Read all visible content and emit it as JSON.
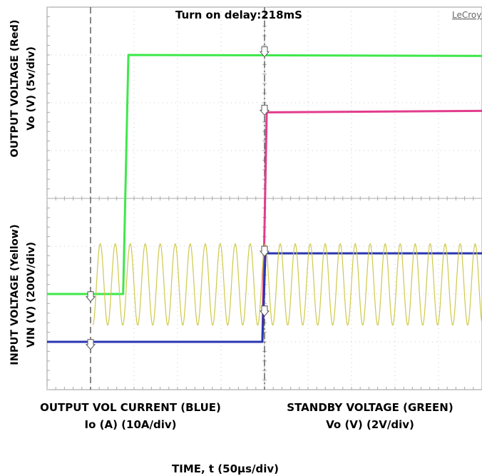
{
  "chart_data": {
    "type": "line",
    "title": "Turn on delay:218mS",
    "brand": "LeCroy",
    "left_axis_labels": {
      "top_line1": "OUTPUT VOLTAGE (Red)",
      "top_line2": "Vo (V) (5v/div)",
      "bottom_line1": "INPUT VOLTAGE (Yellow)",
      "bottom_line2": "VIN (V) (200V/div)"
    },
    "bottom_labels": {
      "left_line1": "OUTPUT VOL CURRENT (BLUE)",
      "left_line2": "Io (A) (10A/div)",
      "right_line1": "STANDBY VOLTAGE (GREEN)",
      "right_line2": "Vo (V) (2V/div)"
    },
    "xlabel": "TIME, t (50µs/div)",
    "grid": true,
    "xlim": [
      0,
      10
    ],
    "ylim": [
      -4,
      4
    ],
    "cursors_x": [
      1,
      5
    ],
    "series": [
      {
        "color": "#3ee84a",
        "x": [
          0,
          1.75,
          1.87,
          10
        ],
        "y": [
          -2,
          -2,
          3,
          2.98
        ]
      },
      {
        "color": "#e23c8c",
        "x": [
          0,
          4.95,
          5.05,
          10
        ],
        "y": [
          -3,
          -3,
          1.8,
          1.83
        ]
      },
      {
        "color": "#2a36b0",
        "x": [
          0,
          4.95,
          5.02,
          10
        ],
        "y": [
          -3,
          -3,
          -1.15,
          -1.15
        ]
      },
      {
        "color": "#cfc94a",
        "x_start": 1.05,
        "x_end": 10,
        "center": -1.8,
        "amplitude": 0.85,
        "cycles_per_div": 2.9
      }
    ],
    "colors": {
      "grid": "#c8c8c8",
      "cursor": "#555555",
      "frame": "#9a9a9a",
      "brand": "#666666"
    }
  }
}
